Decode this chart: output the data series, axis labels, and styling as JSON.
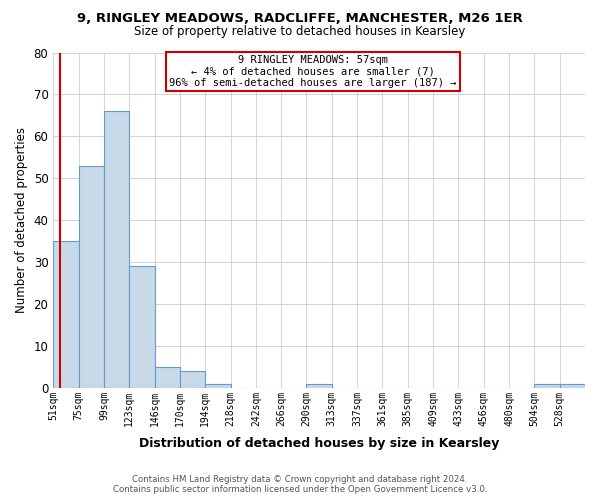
{
  "title1": "9, RINGLEY MEADOWS, RADCLIFFE, MANCHESTER, M26 1ER",
  "title2": "Size of property relative to detached houses in Kearsley",
  "xlabel": "Distribution of detached houses by size in Kearsley",
  "ylabel": "Number of detached properties",
  "footnote": "Contains HM Land Registry data © Crown copyright and database right 2024.\nContains public sector information licensed under the Open Government Licence v3.0.",
  "bin_labels": [
    "51sqm",
    "75sqm",
    "99sqm",
    "123sqm",
    "146sqm",
    "170sqm",
    "194sqm",
    "218sqm",
    "242sqm",
    "266sqm",
    "290sqm",
    "313sqm",
    "337sqm",
    "361sqm",
    "385sqm",
    "409sqm",
    "433sqm",
    "456sqm",
    "480sqm",
    "504sqm",
    "528sqm"
  ],
  "values": [
    35,
    53,
    66,
    29,
    5,
    4,
    1,
    0,
    0,
    0,
    1,
    0,
    0,
    0,
    0,
    0,
    0,
    0,
    0,
    1,
    1
  ],
  "bar_color": "#c8d9e8",
  "bar_edgecolor": "#6699cc",
  "property_line_x": 0.25,
  "property_line_color": "#cc0000",
  "annotation_line1": "9 RINGLEY MEADOWS: 57sqm",
  "annotation_line2": "← 4% of detached houses are smaller (7)",
  "annotation_line3": "96% of semi-detached houses are larger (187) →",
  "annotation_box_edgecolor": "#cc0000",
  "ylim": [
    0,
    80
  ],
  "yticks": [
    0,
    10,
    20,
    30,
    40,
    50,
    60,
    70,
    80
  ],
  "background_color": "#ffffff",
  "grid_color": "#cccccc"
}
